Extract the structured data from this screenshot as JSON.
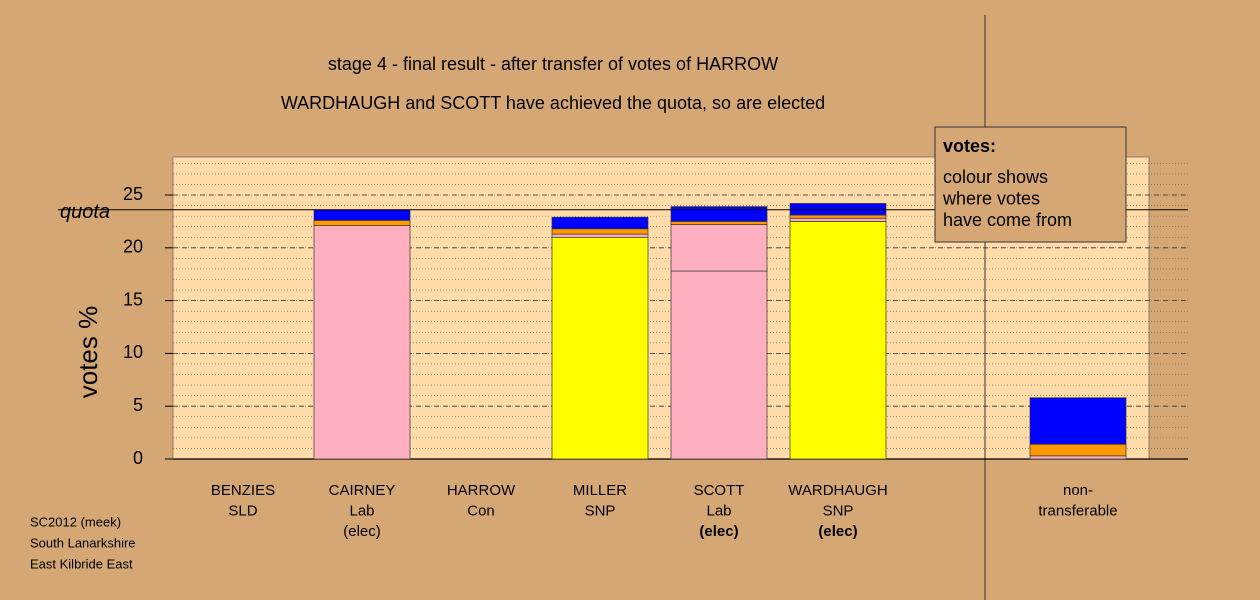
{
  "chart_data": {
    "type": "bar",
    "stacked": true,
    "title": "stage 4 - final result - after transfer of votes of HARROW",
    "subtitle": "WARDHAUGH and SCOTT have achieved the quota, so are elected",
    "y_label": "votes %",
    "categories": [
      {
        "lines": [
          "BENZIES",
          "SLD"
        ]
      },
      {
        "lines": [
          "CAIRNEY",
          "Lab",
          "(elec)"
        ]
      },
      {
        "lines": [
          "HARROW",
          "Con"
        ]
      },
      {
        "lines": [
          "MILLER",
          "SNP"
        ]
      },
      {
        "lines": [
          "SCOTT",
          "Lab",
          "(elec)"
        ],
        "bold_last": true
      },
      {
        "lines": [
          "WARDHAUGH",
          "SNP",
          "(elec)"
        ],
        "bold_last": true
      },
      {
        "lines": [
          "non-",
          "transferable"
        ],
        "separated": true
      }
    ],
    "series": [
      {
        "color": "#ffff00",
        "values": [
          0,
          0,
          0,
          21.0,
          0,
          22.5,
          0
        ]
      },
      {
        "color": "#ffb0c0",
        "values": [
          0,
          22.1,
          0,
          0.3,
          17.8,
          0.3,
          0.3
        ]
      },
      {
        "color": "#ffb0c0",
        "values": [
          0,
          0,
          0,
          0,
          4.4,
          0,
          0
        ]
      },
      {
        "color": "#ff9900",
        "values": [
          0,
          0.5,
          0,
          0.5,
          0.3,
          0.3,
          1.1
        ]
      },
      {
        "color": "#0000ff",
        "values": [
          0,
          1.0,
          0,
          1.1,
          1.4,
          1.1,
          4.4
        ]
      }
    ],
    "ylim": [
      0,
      28.6
    ],
    "yticks": [
      0,
      5,
      10,
      15,
      20,
      25
    ],
    "minor_step": 1,
    "grid": true,
    "quota": {
      "label": "quota",
      "value": 23.6
    },
    "legend": {
      "title": "votes:",
      "lines": [
        "colour shows",
        "where votes",
        "have come from"
      ]
    },
    "footer": [
      "SC2012 (meek)",
      "South Lanarkshire",
      "East Kilbride East"
    ]
  }
}
